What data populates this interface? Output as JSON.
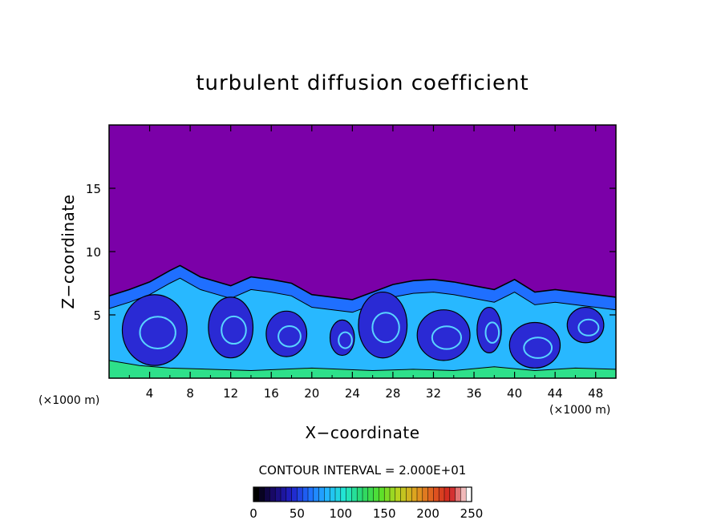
{
  "chart_data": {
    "type": "heatmap",
    "title": "turbulent diffusion coefficient",
    "xlabel": "X−coordinate",
    "ylabel": "Z−coordinate",
    "x_unit_left": "(×1000 m)",
    "x_unit_right": "(×1000 m)",
    "xlim": [
      0,
      50
    ],
    "ylim": [
      0,
      20
    ],
    "x_ticks": [
      4,
      8,
      12,
      16,
      20,
      24,
      28,
      32,
      36,
      40,
      44,
      48
    ],
    "x_tick_labels": [
      "4",
      "8",
      "12",
      "16",
      "20",
      "24",
      "28",
      "32",
      "36",
      "40",
      "44",
      "48"
    ],
    "y_ticks": [
      5,
      10,
      15
    ],
    "y_tick_labels": [
      "5",
      "10",
      "15"
    ],
    "turbulent_layer_top": [
      {
        "x": 0,
        "z": 6.5
      },
      {
        "x": 2,
        "z": 7.0
      },
      {
        "x": 4,
        "z": 7.6
      },
      {
        "x": 6,
        "z": 8.5
      },
      {
        "x": 7,
        "z": 8.9
      },
      {
        "x": 9,
        "z": 8.0
      },
      {
        "x": 12,
        "z": 7.3
      },
      {
        "x": 14,
        "z": 8.0
      },
      {
        "x": 16,
        "z": 7.8
      },
      {
        "x": 18,
        "z": 7.5
      },
      {
        "x": 20,
        "z": 6.6
      },
      {
        "x": 24,
        "z": 6.2
      },
      {
        "x": 26,
        "z": 6.8
      },
      {
        "x": 28,
        "z": 7.4
      },
      {
        "x": 30,
        "z": 7.7
      },
      {
        "x": 32,
        "z": 7.8
      },
      {
        "x": 34,
        "z": 7.6
      },
      {
        "x": 36,
        "z": 7.3
      },
      {
        "x": 38,
        "z": 7.0
      },
      {
        "x": 40,
        "z": 7.8
      },
      {
        "x": 42,
        "z": 6.8
      },
      {
        "x": 44,
        "z": 7.0
      },
      {
        "x": 46,
        "z": 6.8
      },
      {
        "x": 48,
        "z": 6.6
      },
      {
        "x": 50,
        "z": 6.4
      }
    ],
    "colorbar": {
      "label": "CONTOUR INTERVAL = 2.000E+01",
      "min": 0,
      "max": 250,
      "tick_labels": [
        "0",
        "50",
        "100",
        "150",
        "200",
        "250"
      ],
      "colors": [
        "#000000",
        "#1a0a6e",
        "#2020c8",
        "#1f6fff",
        "#22b5ff",
        "#22e8d0",
        "#2ad86a",
        "#56e02a",
        "#b8d420",
        "#e0a020",
        "#e05a20",
        "#d02020",
        "#ffffff"
      ]
    },
    "field_colors": {
      "background": "#7b00a8",
      "deep_blue": "#2a2ad4",
      "mid_blue": "#1f6fff",
      "cyan": "#28b8ff",
      "green": "#2ee08a"
    },
    "grid": false,
    "legend": "colorbar-bottom"
  }
}
